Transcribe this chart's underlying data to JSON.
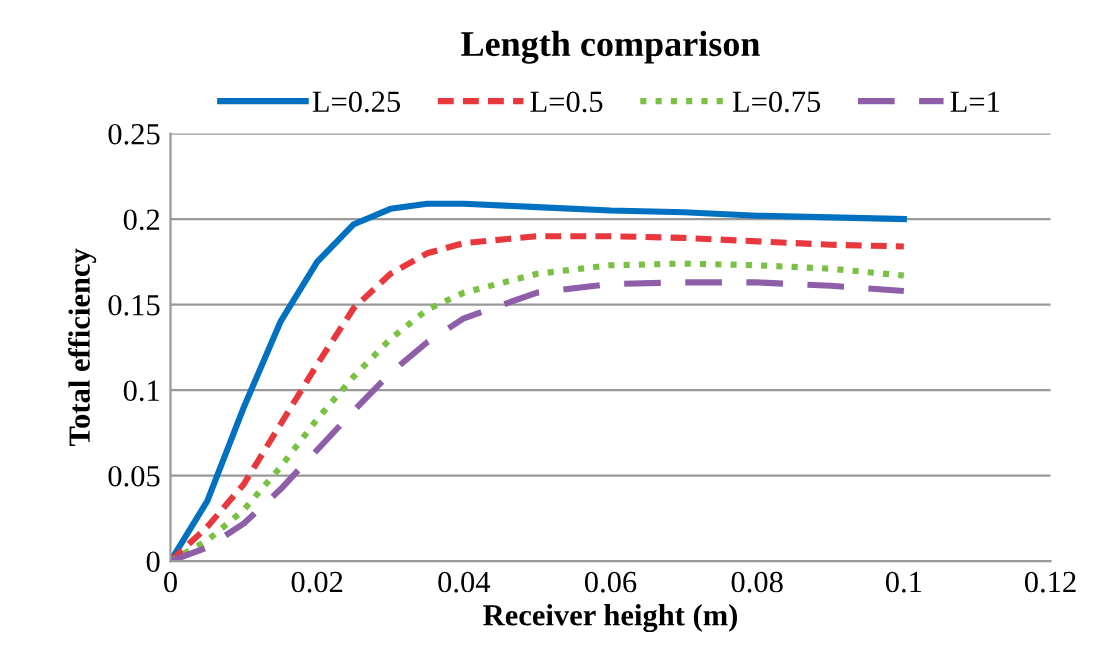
{
  "chart_data": {
    "type": "line",
    "title": "Length comparison",
    "xlabel": "Receiver height (m)",
    "ylabel": "Total efficiency",
    "x": [
      0,
      0.005,
      0.01,
      0.015,
      0.02,
      0.025,
      0.03,
      0.035,
      0.04,
      0.05,
      0.06,
      0.07,
      0.08,
      0.09,
      0.1
    ],
    "series": [
      {
        "name": "L=0.25",
        "color": "#0070c0",
        "line_style": "solid",
        "values": [
          0,
          0.035,
          0.09,
          0.14,
          0.175,
          0.197,
          0.206,
          0.209,
          0.209,
          0.207,
          0.205,
          0.204,
          0.202,
          0.201,
          0.2
        ]
      },
      {
        "name": "L=0.5",
        "color": "#e8383d",
        "line_style": "dashed",
        "values": [
          0,
          0.02,
          0.045,
          0.08,
          0.115,
          0.148,
          0.168,
          0.18,
          0.186,
          0.19,
          0.19,
          0.189,
          0.187,
          0.185,
          0.184
        ]
      },
      {
        "name": "L=0.75",
        "color": "#7ac143",
        "line_style": "dotted",
        "values": [
          0,
          0.012,
          0.03,
          0.055,
          0.083,
          0.108,
          0.13,
          0.147,
          0.157,
          0.168,
          0.173,
          0.174,
          0.173,
          0.171,
          0.167
        ]
      },
      {
        "name": "L=1",
        "color": "#8e5fa8",
        "line_style": "longdash",
        "values": [
          0,
          0.008,
          0.022,
          0.042,
          0.065,
          0.088,
          0.11,
          0.128,
          0.142,
          0.157,
          0.162,
          0.163,
          0.163,
          0.161,
          0.158
        ]
      }
    ],
    "xlim": [
      0,
      0.12
    ],
    "xticks": [
      {
        "value": 0,
        "label": "0"
      },
      0.02,
      0.04,
      0.06,
      0.08,
      0.1,
      0.12
    ],
    "ylim": [
      0,
      0.25
    ],
    "yticks": [
      {
        "value": 0,
        "label": "0"
      },
      0.05,
      0.1,
      0.15,
      0.2,
      0.25
    ],
    "grid": "y",
    "legend": "top",
    "marker": "none"
  }
}
